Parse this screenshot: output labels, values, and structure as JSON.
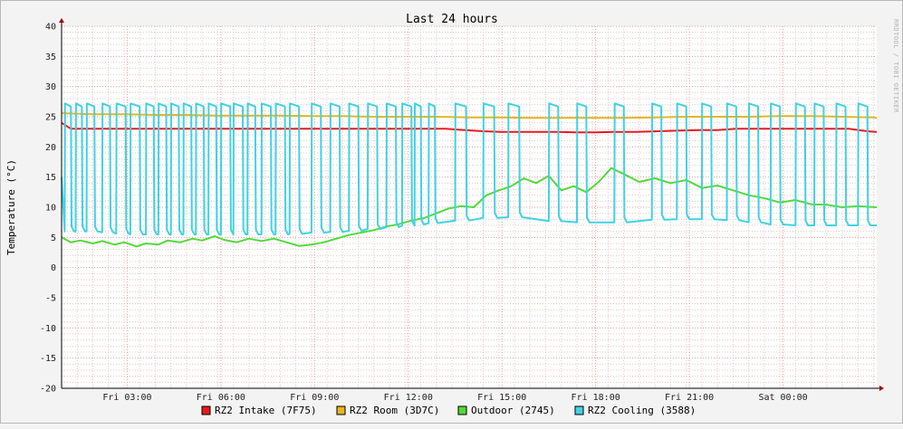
{
  "chart_data": {
    "type": "line",
    "title": "Last 24 hours",
    "ylabel": "Temperature (°C)",
    "watermark": "RRDTOOL / TOBI OETIKER",
    "ylim": [
      -20,
      40
    ],
    "y_ticks": [
      -20,
      -15,
      -10,
      -5,
      0,
      5,
      10,
      15,
      20,
      25,
      30,
      35,
      40
    ],
    "xlim_hours": [
      0,
      26.1
    ],
    "x_ticks": [
      {
        "label": "Fri 03:00",
        "hour": 2.1
      },
      {
        "label": "Fri 06:00",
        "hour": 5.1
      },
      {
        "label": "Fri 09:00",
        "hour": 8.1
      },
      {
        "label": "Fri 12:00",
        "hour": 11.1
      },
      {
        "label": "Fri 15:00",
        "hour": 14.1
      },
      {
        "label": "Fri 18:00",
        "hour": 17.1
      },
      {
        "label": "Fri 21:00",
        "hour": 20.1
      },
      {
        "label": "Sat 00:00",
        "hour": 23.1
      }
    ],
    "grid": true,
    "legend_position": "bottom",
    "series": [
      {
        "name": "RZ2 Intake (7F75)",
        "color": "#e8191e",
        "x": [
          0,
          0.3,
          0.5,
          0.8,
          1.0,
          1.3,
          1.6,
          1.9,
          2.2,
          2.5,
          2.8,
          3.1,
          3.5,
          3.8,
          4.1,
          4.4,
          4.8,
          5.1,
          5.5,
          5.9,
          6.3,
          6.7,
          7.1,
          7.5,
          7.9,
          8.3,
          8.7,
          9.2,
          9.7,
          10.2,
          10.7,
          11.2,
          11.7,
          12.3,
          12.9,
          13.5,
          14.1,
          14.7,
          15.3,
          15.9,
          16.5,
          17.1,
          17.7,
          18.4,
          19.1,
          19.8,
          20.4,
          21.0,
          21.6,
          22.2,
          22.8,
          23.4,
          24.0,
          24.6,
          25.2,
          25.8,
          26.1
        ],
        "values": [
          24,
          23,
          23,
          23,
          23,
          23,
          23,
          23,
          23,
          23,
          23,
          23,
          23,
          23,
          23,
          23,
          23,
          23,
          23,
          23,
          23,
          23,
          23,
          23,
          23,
          23,
          23,
          23,
          23,
          23,
          23,
          23,
          23,
          23,
          22.8,
          22.6,
          22.5,
          22.5,
          22.5,
          22.5,
          22.4,
          22.4,
          22.5,
          22.5,
          22.6,
          22.7,
          22.8,
          22.8,
          23,
          23,
          23,
          23,
          23,
          23,
          23,
          22.6,
          22.5
        ]
      },
      {
        "name": "RZ2 Room (3D7C)",
        "color": "#e8b51e",
        "x": [
          0,
          1,
          2,
          3,
          4,
          5,
          6,
          7,
          8,
          9,
          10,
          11,
          12,
          13,
          14,
          15,
          16,
          17,
          18,
          19,
          20,
          21,
          22,
          23,
          24,
          25,
          26,
          26.1
        ],
        "values": [
          25.6,
          25.4,
          25.4,
          25.3,
          25.3,
          25.2,
          25.2,
          25.2,
          25.1,
          25.1,
          25.0,
          25.0,
          25.0,
          24.9,
          24.9,
          24.8,
          24.8,
          24.8,
          24.8,
          24.9,
          25.0,
          25.0,
          25.0,
          25.1,
          25.1,
          25.0,
          24.9,
          24.8
        ]
      },
      {
        "name": "Outdoor (2745)",
        "color": "#52d93a",
        "x": [
          0,
          0.3,
          0.6,
          1.0,
          1.3,
          1.7,
          2.0,
          2.4,
          2.7,
          3.1,
          3.4,
          3.8,
          4.2,
          4.5,
          4.9,
          5.2,
          5.6,
          6.0,
          6.4,
          6.8,
          7.2,
          7.6,
          8.0,
          8.4,
          8.8,
          9.2,
          9.6,
          10.0,
          10.4,
          10.8,
          11.2,
          11.6,
          12.0,
          12.4,
          12.8,
          13.2,
          13.6,
          14.0,
          14.4,
          14.8,
          15.2,
          15.6,
          16.0,
          16.4,
          16.8,
          17.2,
          17.6,
          18.0,
          18.5,
          19.0,
          19.5,
          20.0,
          20.5,
          21.0,
          21.5,
          22.0,
          22.5,
          23.0,
          23.5,
          24.0,
          24.5,
          25.0,
          25.5,
          26.1
        ],
        "values": [
          5,
          4.2,
          4.5,
          4,
          4.4,
          3.8,
          4.2,
          3.5,
          4,
          3.8,
          4.5,
          4.2,
          4.8,
          4.5,
          5.2,
          4.6,
          4.2,
          4.8,
          4.4,
          4.8,
          4.2,
          3.6,
          3.8,
          4.2,
          4.8,
          5.4,
          5.8,
          6.2,
          6.8,
          7.2,
          7.8,
          8.2,
          9.0,
          9.8,
          10.2,
          10.0,
          12.0,
          12.8,
          13.5,
          14.8,
          14.0,
          15.2,
          12.8,
          13.5,
          12.5,
          14.2,
          16.5,
          15.5,
          14.2,
          14.8,
          14.0,
          14.5,
          13.2,
          13.6,
          12.8,
          12.0,
          11.5,
          10.8,
          11.2,
          10.5,
          10.4,
          10.0,
          10.2,
          10.0
        ]
      },
      {
        "name": "RZ2 Cooling (3588)",
        "color": "#40d2e3",
        "baseline": [
          6,
          6,
          5.5,
          5.5,
          5.5,
          5.5,
          5.5,
          5.5,
          5.8,
          6,
          6.5,
          7,
          7.5,
          8,
          8.5,
          8,
          7.5,
          7.5,
          7.5,
          8,
          8,
          8,
          7.5,
          7,
          7,
          7,
          7
        ],
        "baseline_hours": [
          0,
          1,
          2,
          3,
          4,
          5,
          6,
          7,
          8,
          9,
          10,
          11,
          12,
          13,
          14,
          15,
          16,
          17,
          18,
          19,
          20,
          21,
          22,
          23,
          24,
          25,
          26
        ],
        "peak": 27.2,
        "cycle_start_hours": [
          0.1,
          0.45,
          0.8,
          1.3,
          1.75,
          2.2,
          2.7,
          3.1,
          3.5,
          3.9,
          4.3,
          4.7,
          5.1,
          5.5,
          5.95,
          6.4,
          6.85,
          7.3,
          8.0,
          8.6,
          9.2,
          9.8,
          10.4,
          10.9,
          11.3,
          11.75,
          12.6,
          13.5,
          14.3,
          15.6,
          16.5,
          17.7,
          18.9,
          19.7,
          20.5,
          21.3,
          22.0,
          22.7,
          23.5,
          24.1,
          24.8,
          25.5
        ],
        "cycle_duration_hours": [
          0.2,
          0.2,
          0.25,
          0.25,
          0.3,
          0.3,
          0.25,
          0.25,
          0.25,
          0.25,
          0.25,
          0.25,
          0.3,
          0.3,
          0.25,
          0.3,
          0.3,
          0.3,
          0.3,
          0.3,
          0.3,
          0.3,
          0.3,
          0.3,
          0.2,
          0.2,
          0.35,
          0.35,
          0.35,
          0.3,
          0.3,
          0.3,
          0.3,
          0.3,
          0.3,
          0.3,
          0.3,
          0.3,
          0.3,
          0.3,
          0.3,
          0.3
        ]
      }
    ]
  }
}
